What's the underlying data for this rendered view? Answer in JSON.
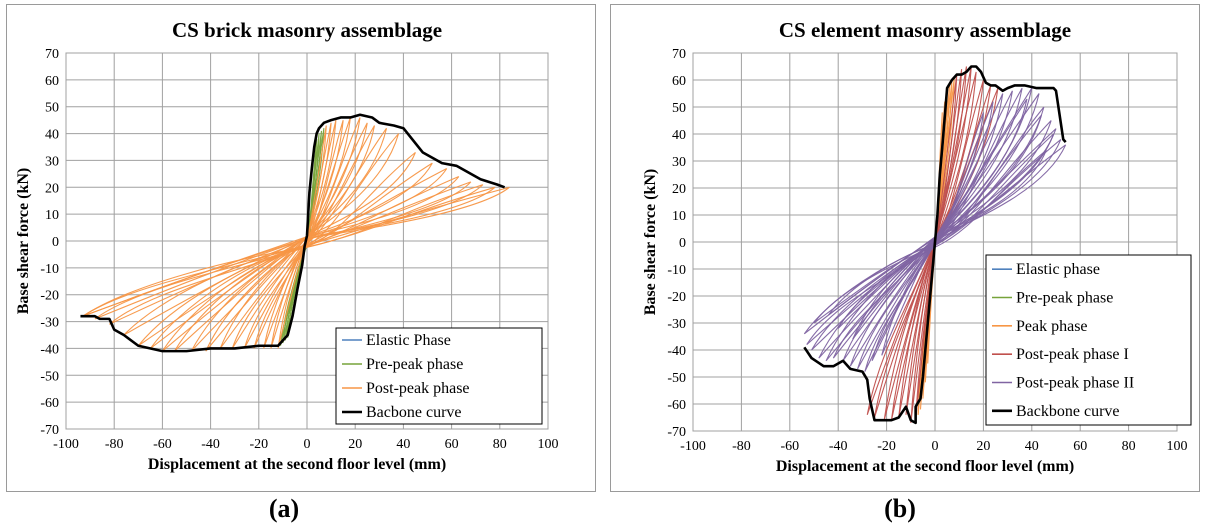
{
  "panel_labels": [
    "(a)",
    "(b)"
  ],
  "colors": {
    "elastic": "#4f81bd",
    "pre_peak": "#77a33a",
    "peak": "#f79646",
    "post_peak_I": "#c0504d",
    "post_peak_II": "#8064a2",
    "backbone": "#000000",
    "grid": "#a0a0a0"
  },
  "chart_data": [
    {
      "type": "line",
      "title": "CS brick masonry assemblage",
      "xlabel": "Displacement at the second floor level (mm)",
      "ylabel": "Base shear force (kN)",
      "xlim": [
        -100,
        100
      ],
      "ylim": [
        -70,
        70
      ],
      "xticks": [
        "-100",
        "-80",
        "-60",
        "-40",
        "-20",
        "0",
        "20",
        "40",
        "60",
        "80",
        "100"
      ],
      "yticks": [
        "70",
        "60",
        "50",
        "40",
        "30",
        "20",
        "10",
        "0",
        "-10",
        "-20",
        "-30",
        "-40",
        "-50",
        "-60",
        "-70"
      ],
      "grid": true,
      "legend_position": "bottom-right",
      "series": [
        {
          "name": "Elastic Phase",
          "color": "#4f81bd",
          "role": "elastic"
        },
        {
          "name": "Pre-peak phase",
          "color": "#77a33a",
          "role": "pre_peak",
          "peaks_pos": [
            [
              4,
              38
            ],
            [
              5,
              40
            ],
            [
              6,
              41
            ],
            [
              7,
              42
            ]
          ],
          "peaks_neg": [
            [
              -8,
              -36
            ],
            [
              -9,
              -37
            ],
            [
              -10,
              -38
            ],
            [
              -11,
              -39
            ]
          ]
        },
        {
          "name": "Post-peak phase",
          "color": "#f79646",
          "role": "post_peak",
          "peaks_pos": [
            [
              8,
              43
            ],
            [
              10,
              44
            ],
            [
              12,
              45
            ],
            [
              15,
              45
            ],
            [
              18,
              46
            ],
            [
              22,
              46
            ],
            [
              25,
              44
            ],
            [
              28,
              43
            ],
            [
              33,
              42
            ],
            [
              38,
              40
            ],
            [
              45,
              33
            ],
            [
              52,
              29
            ],
            [
              58,
              27
            ],
            [
              63,
              24
            ],
            [
              68,
              22
            ],
            [
              73,
              21
            ],
            [
              78,
              20
            ],
            [
              84,
              20
            ]
          ],
          "peaks_neg": [
            [
              -12,
              -40
            ],
            [
              -15,
              -40
            ],
            [
              -18,
              -40
            ],
            [
              -22,
              -40
            ],
            [
              -26,
              -40
            ],
            [
              -31,
              -40
            ],
            [
              -36,
              -40
            ],
            [
              -42,
              -41
            ],
            [
              -48,
              -41
            ],
            [
              -55,
              -41
            ],
            [
              -60,
              -41
            ],
            [
              -65,
              -40
            ],
            [
              -70,
              -39
            ],
            [
              -76,
              -35
            ],
            [
              -82,
              -31
            ],
            [
              -88,
              -29
            ],
            [
              -93,
              -28
            ]
          ]
        },
        {
          "name": "Bacbone curve",
          "color": "#000000",
          "role": "backbone",
          "x": [
            -94,
            -92,
            -88,
            -86,
            -82,
            -80,
            -76,
            -70,
            -60,
            -50,
            -40,
            -30,
            -20,
            -12,
            -8,
            -6,
            -4,
            -2,
            -1,
            0,
            1,
            2,
            3,
            4,
            5,
            7,
            10,
            14,
            18,
            22,
            27,
            30,
            36,
            40,
            48,
            56,
            62,
            72,
            79,
            82
          ],
          "y": [
            -28,
            -28,
            -28,
            -29,
            -29,
            -33,
            -35,
            -39,
            -41,
            -41,
            -40,
            -40,
            -39,
            -39,
            -35,
            -28,
            -18,
            -9,
            -2,
            2,
            18,
            27,
            35,
            40,
            42,
            44,
            45,
            46,
            46,
            47,
            46,
            44,
            43,
            42,
            33,
            29,
            28,
            23,
            21,
            20
          ]
        }
      ]
    },
    {
      "type": "line",
      "title": "CS element masonry assemblage",
      "xlabel": "Displacement at the second floor level (mm)",
      "ylabel": "Base shear force (kN)",
      "xlim": [
        -100,
        100
      ],
      "ylim": [
        -70,
        70
      ],
      "xticks": [
        "-100",
        "-80",
        "-60",
        "-40",
        "-20",
        "0",
        "20",
        "40",
        "60",
        "80",
        "100"
      ],
      "yticks": [
        "70",
        "60",
        "50",
        "40",
        "30",
        "20",
        "10",
        "0",
        "-10",
        "-20",
        "-30",
        "-40",
        "-50",
        "-60",
        "-70"
      ],
      "grid": true,
      "legend_position": "bottom-right",
      "series": [
        {
          "name": "Elastic phase",
          "color": "#4f81bd",
          "role": "elastic"
        },
        {
          "name": "Pre-peak phase",
          "color": "#77a33a",
          "role": "pre_peak"
        },
        {
          "name": "Peak phase",
          "color": "#f79646",
          "role": "peak",
          "peaks_pos": [
            [
              3,
              48
            ],
            [
              4,
              52
            ],
            [
              5,
              55
            ],
            [
              6,
              58
            ],
            [
              7,
              60
            ],
            [
              8,
              61
            ]
          ],
          "peaks_neg": [
            [
              -3,
              -45
            ],
            [
              -4,
              -52
            ],
            [
              -5,
              -58
            ],
            [
              -6,
              -62
            ],
            [
              -7,
              -64
            ]
          ]
        },
        {
          "name": "Post-peak phase I",
          "color": "#c0504d",
          "role": "post_peak_I",
          "peaks_pos": [
            [
              9,
              62
            ],
            [
              11,
              64
            ],
            [
              13,
              65
            ],
            [
              15,
              65
            ],
            [
              17,
              63
            ],
            [
              20,
              60
            ],
            [
              23,
              58
            ],
            [
              26,
              57
            ]
          ],
          "peaks_neg": [
            [
              -8,
              -66
            ],
            [
              -10,
              -67
            ],
            [
              -12,
              -64
            ],
            [
              -15,
              -65
            ],
            [
              -18,
              -66
            ],
            [
              -21,
              -66
            ],
            [
              -25,
              -65
            ],
            [
              -28,
              -64
            ]
          ]
        },
        {
          "name": "Post-peak phase II",
          "color": "#8064a2",
          "role": "post_peak_II",
          "peaks_pos": [
            [
              20,
              48
            ],
            [
              24,
              52
            ],
            [
              28,
              55
            ],
            [
              32,
              56
            ],
            [
              36,
              57
            ],
            [
              40,
              57
            ],
            [
              43,
              55
            ],
            [
              45,
              50
            ],
            [
              48,
              45
            ],
            [
              50,
              42
            ],
            [
              52,
              38
            ],
            [
              54,
              36
            ],
            [
              49,
              40
            ],
            [
              44,
              47
            ],
            [
              38,
              53
            ],
            [
              46,
              34
            ]
          ],
          "peaks_neg": [
            [
              -22,
              -42
            ],
            [
              -26,
              -44
            ],
            [
              -29,
              -48
            ],
            [
              -32,
              -47
            ],
            [
              -35,
              -46
            ],
            [
              -38,
              -44
            ],
            [
              -42,
              -43
            ],
            [
              -45,
              -44
            ],
            [
              -48,
              -43
            ],
            [
              -51,
              -40
            ],
            [
              -53,
              -38
            ],
            [
              -54,
              -34
            ],
            [
              -50,
              -30
            ],
            [
              -44,
              -27
            ],
            [
              -40,
              -32
            ],
            [
              -34,
              -36
            ]
          ]
        },
        {
          "name": "Backbone curve",
          "color": "#000000",
          "role": "backbone",
          "x": [
            -54,
            -51,
            -46,
            -42,
            -38,
            -35,
            -30,
            -28,
            -27,
            -25,
            -21,
            -18,
            -15,
            -12,
            -10,
            -8,
            -8,
            -6,
            -5,
            -4,
            -3,
            -2,
            -1,
            0,
            1,
            2,
            3,
            5,
            7,
            9,
            11,
            13,
            15,
            17,
            19,
            21,
            23,
            25,
            28,
            30,
            33,
            37,
            42,
            49,
            50,
            53,
            54
          ],
          "y": [
            -39,
            -43,
            -46,
            -46,
            -44,
            -47,
            -48,
            -51,
            -58,
            -66,
            -66,
            -66,
            -65,
            -61,
            -66,
            -67,
            -61,
            -58,
            -50,
            -40,
            -30,
            -20,
            -10,
            0,
            10,
            25,
            35,
            57,
            60,
            62,
            62,
            63,
            65,
            65,
            63,
            59,
            58,
            58,
            56,
            57,
            58,
            58,
            57,
            57,
            56,
            38,
            37
          ]
        }
      ]
    }
  ]
}
